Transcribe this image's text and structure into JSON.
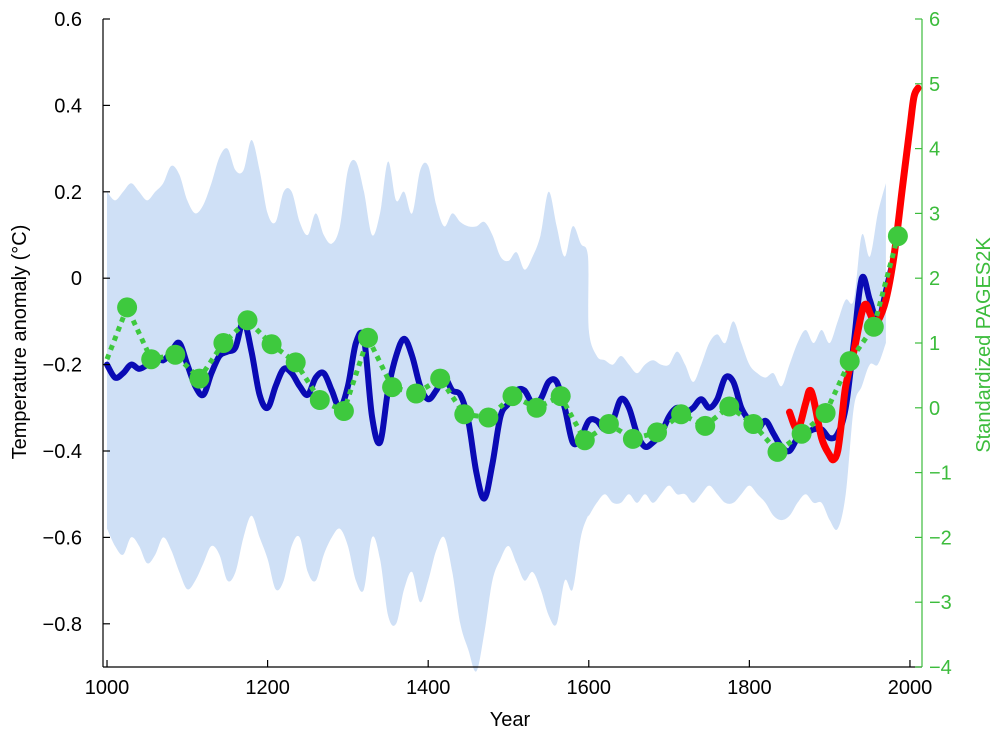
{
  "chart_data": {
    "type": "line",
    "title": "",
    "xlabel": "Year",
    "ylabel": "Temperature anomaly (°C)",
    "ylabel_right": "Standardized PAGES2K",
    "xlim": [
      995,
      2015
    ],
    "ylim": [
      -0.9,
      0.6
    ],
    "ylim_right": [
      -4,
      6
    ],
    "x_ticks": [
      1000,
      1200,
      1400,
      1600,
      1800,
      2000
    ],
    "y_ticks": [
      -0.8,
      -0.6,
      -0.4,
      -0.2,
      0,
      0.2,
      0.4,
      0.6
    ],
    "y_tick_labels": [
      "−0.8",
      "−0.6",
      "−0.4",
      "−0.2",
      "0",
      "0.2",
      "0.4",
      "0.6"
    ],
    "y_ticks_right": [
      -4,
      -3,
      -2,
      -1,
      0,
      1,
      2,
      3,
      4,
      5,
      6
    ],
    "y_tick_labels_right": [
      "−4",
      "−3",
      "−2",
      "−1",
      "0",
      "1",
      "2",
      "3",
      "4",
      "5",
      "6"
    ],
    "grid": false,
    "colors": {
      "reconstruction": "#0a0ab4",
      "instrumental": "#ff0000",
      "pages2k": "#3ec93e",
      "uncertainty": "#cfe0f6",
      "right_axis": "#3cbc3c"
    },
    "uncertainty_band": {
      "x": [
        1000,
        1010,
        1020,
        1030,
        1040,
        1050,
        1060,
        1070,
        1080,
        1090,
        1100,
        1110,
        1120,
        1130,
        1140,
        1150,
        1160,
        1170,
        1180,
        1190,
        1200,
        1210,
        1220,
        1230,
        1240,
        1250,
        1260,
        1270,
        1280,
        1290,
        1300,
        1310,
        1320,
        1330,
        1340,
        1350,
        1360,
        1370,
        1380,
        1390,
        1400,
        1410,
        1420,
        1430,
        1440,
        1450,
        1460,
        1470,
        1480,
        1490,
        1500,
        1510,
        1520,
        1530,
        1540,
        1550,
        1560,
        1570,
        1580,
        1590,
        1599,
        1600,
        1610,
        1620,
        1630,
        1640,
        1650,
        1660,
        1670,
        1680,
        1690,
        1700,
        1710,
        1720,
        1730,
        1740,
        1750,
        1760,
        1770,
        1780,
        1790,
        1800,
        1810,
        1820,
        1830,
        1840,
        1850,
        1860,
        1870,
        1880,
        1890,
        1900,
        1910,
        1920,
        1930,
        1940,
        1950,
        1960,
        1970
      ],
      "upper": [
        0.2,
        0.18,
        0.2,
        0.22,
        0.2,
        0.18,
        0.2,
        0.22,
        0.26,
        0.24,
        0.18,
        0.15,
        0.17,
        0.22,
        0.28,
        0.3,
        0.25,
        0.25,
        0.32,
        0.25,
        0.15,
        0.13,
        0.2,
        0.2,
        0.13,
        0.1,
        0.15,
        0.1,
        0.08,
        0.12,
        0.25,
        0.27,
        0.2,
        0.1,
        0.15,
        0.27,
        0.18,
        0.2,
        0.15,
        0.25,
        0.26,
        0.17,
        0.12,
        0.15,
        0.13,
        0.12,
        0.12,
        0.13,
        0.1,
        0.05,
        0.04,
        0.06,
        0.02,
        0.05,
        0.1,
        0.2,
        0.12,
        0.05,
        0.12,
        0.08,
        0.05,
        -0.12,
        -0.18,
        -0.19,
        -0.2,
        -0.18,
        -0.2,
        -0.22,
        -0.2,
        -0.19,
        -0.2,
        -0.2,
        -0.17,
        -0.2,
        -0.24,
        -0.2,
        -0.15,
        -0.13,
        -0.15,
        -0.1,
        -0.15,
        -0.2,
        -0.22,
        -0.23,
        -0.22,
        -0.25,
        -0.2,
        -0.15,
        -0.12,
        -0.15,
        -0.12,
        -0.15,
        -0.1,
        -0.05,
        -0.05,
        0.1,
        0.05,
        0.15,
        0.22
      ],
      "lower": [
        -0.58,
        -0.62,
        -0.64,
        -0.6,
        -0.62,
        -0.66,
        -0.64,
        -0.6,
        -0.63,
        -0.68,
        -0.72,
        -0.7,
        -0.66,
        -0.62,
        -0.64,
        -0.7,
        -0.68,
        -0.6,
        -0.55,
        -0.6,
        -0.65,
        -0.72,
        -0.7,
        -0.62,
        -0.6,
        -0.68,
        -0.7,
        -0.64,
        -0.6,
        -0.58,
        -0.62,
        -0.7,
        -0.72,
        -0.6,
        -0.65,
        -0.78,
        -0.8,
        -0.72,
        -0.68,
        -0.75,
        -0.7,
        -0.63,
        -0.6,
        -0.68,
        -0.8,
        -0.86,
        -0.91,
        -0.82,
        -0.7,
        -0.65,
        -0.62,
        -0.66,
        -0.7,
        -0.68,
        -0.72,
        -0.78,
        -0.8,
        -0.7,
        -0.72,
        -0.6,
        -0.55,
        -0.55,
        -0.52,
        -0.5,
        -0.52,
        -0.52,
        -0.5,
        -0.52,
        -0.5,
        -0.52,
        -0.5,
        -0.48,
        -0.5,
        -0.5,
        -0.52,
        -0.5,
        -0.48,
        -0.5,
        -0.52,
        -0.52,
        -0.5,
        -0.48,
        -0.5,
        -0.52,
        -0.55,
        -0.56,
        -0.55,
        -0.52,
        -0.5,
        -0.52,
        -0.52,
        -0.56,
        -0.58,
        -0.5,
        -0.3,
        -0.25,
        -0.2,
        -0.2,
        -0.15
      ]
    },
    "series": [
      {
        "axis": "left",
        "style": "solid",
        "x": [
          1000,
          1010,
          1020,
          1030,
          1040,
          1050,
          1060,
          1070,
          1080,
          1090,
          1100,
          1110,
          1120,
          1130,
          1140,
          1150,
          1160,
          1170,
          1180,
          1190,
          1200,
          1210,
          1220,
          1230,
          1240,
          1250,
          1260,
          1270,
          1280,
          1290,
          1300,
          1310,
          1320,
          1330,
          1340,
          1350,
          1360,
          1370,
          1380,
          1390,
          1400,
          1410,
          1420,
          1430,
          1440,
          1450,
          1460,
          1470,
          1480,
          1490,
          1500,
          1510,
          1520,
          1530,
          1540,
          1550,
          1560,
          1570,
          1580,
          1590,
          1600,
          1610,
          1620,
          1630,
          1640,
          1650,
          1660,
          1670,
          1680,
          1690,
          1700,
          1710,
          1720,
          1730,
          1740,
          1750,
          1760,
          1770,
          1780,
          1790,
          1800,
          1810,
          1820,
          1830,
          1840,
          1850,
          1860,
          1870,
          1880,
          1890,
          1900,
          1910,
          1920,
          1930,
          1940,
          1950,
          1960,
          1970,
          1980
        ],
        "values": [
          -0.2,
          -0.23,
          -0.22,
          -0.2,
          -0.21,
          -0.2,
          -0.18,
          -0.19,
          -0.17,
          -0.15,
          -0.2,
          -0.25,
          -0.27,
          -0.22,
          -0.18,
          -0.17,
          -0.16,
          -0.1,
          -0.17,
          -0.27,
          -0.3,
          -0.25,
          -0.21,
          -0.22,
          -0.25,
          -0.27,
          -0.23,
          -0.22,
          -0.26,
          -0.3,
          -0.25,
          -0.15,
          -0.14,
          -0.32,
          -0.38,
          -0.26,
          -0.18,
          -0.14,
          -0.18,
          -0.25,
          -0.28,
          -0.26,
          -0.23,
          -0.26,
          -0.27,
          -0.33,
          -0.45,
          -0.51,
          -0.43,
          -0.32,
          -0.29,
          -0.26,
          -0.26,
          -0.29,
          -0.28,
          -0.24,
          -0.24,
          -0.3,
          -0.38,
          -0.37,
          -0.33,
          -0.33,
          -0.35,
          -0.33,
          -0.28,
          -0.3,
          -0.36,
          -0.39,
          -0.38,
          -0.36,
          -0.32,
          -0.3,
          -0.31,
          -0.3,
          -0.28,
          -0.3,
          -0.28,
          -0.23,
          -0.24,
          -0.3,
          -0.33,
          -0.35,
          -0.33,
          -0.36,
          -0.39,
          -0.4,
          -0.37,
          -0.36,
          -0.35,
          -0.35,
          -0.37,
          -0.36,
          -0.3,
          -0.15,
          0.0,
          -0.05,
          -0.1,
          -0.03,
          0.05
        ]
      },
      {
        "axis": "left",
        "style": "solid",
        "x": [
          1850,
          1860,
          1870,
          1875,
          1880,
          1890,
          1900,
          1905,
          1910,
          1915,
          1920,
          1930,
          1940,
          1945,
          1950,
          1955,
          1960,
          1970,
          1980,
          1990,
          2000,
          2005,
          2010
        ],
        "values": [
          -0.31,
          -0.35,
          -0.29,
          -0.26,
          -0.28,
          -0.37,
          -0.41,
          -0.42,
          -0.4,
          -0.33,
          -0.25,
          -0.17,
          -0.08,
          -0.06,
          -0.08,
          -0.1,
          -0.1,
          -0.05,
          0.05,
          0.2,
          0.35,
          0.42,
          0.44
        ]
      },
      {
        "axis": "right",
        "style": "dotted-markers",
        "x": [
          1000,
          1025,
          1055,
          1085,
          1115,
          1145,
          1175,
          1205,
          1235,
          1265,
          1295,
          1325,
          1355,
          1385,
          1415,
          1445,
          1475,
          1505,
          1535,
          1565,
          1595,
          1625,
          1655,
          1685,
          1715,
          1745,
          1775,
          1805,
          1835,
          1865,
          1895,
          1925,
          1955,
          1985
        ],
        "marker_x": [
          1025,
          1055,
          1085,
          1115,
          1145,
          1175,
          1205,
          1235,
          1265,
          1295,
          1325,
          1355,
          1385,
          1415,
          1445,
          1475,
          1505,
          1535,
          1565,
          1595,
          1625,
          1655,
          1685,
          1715,
          1745,
          1775,
          1805,
          1835,
          1865,
          1895,
          1925,
          1955,
          1985
        ],
        "values": [
          0.75,
          1.55,
          0.75,
          0.82,
          0.45,
          1.0,
          1.35,
          0.98,
          0.7,
          0.12,
          -0.05,
          1.08,
          0.32,
          0.22,
          0.45,
          -0.1,
          -0.15,
          0.18,
          0.0,
          0.18,
          -0.5,
          -0.25,
          -0.48,
          -0.38,
          -0.1,
          -0.28,
          0.02,
          -0.25,
          -0.68,
          -0.4,
          -0.08,
          0.72,
          1.25,
          2.65
        ]
      }
    ]
  }
}
